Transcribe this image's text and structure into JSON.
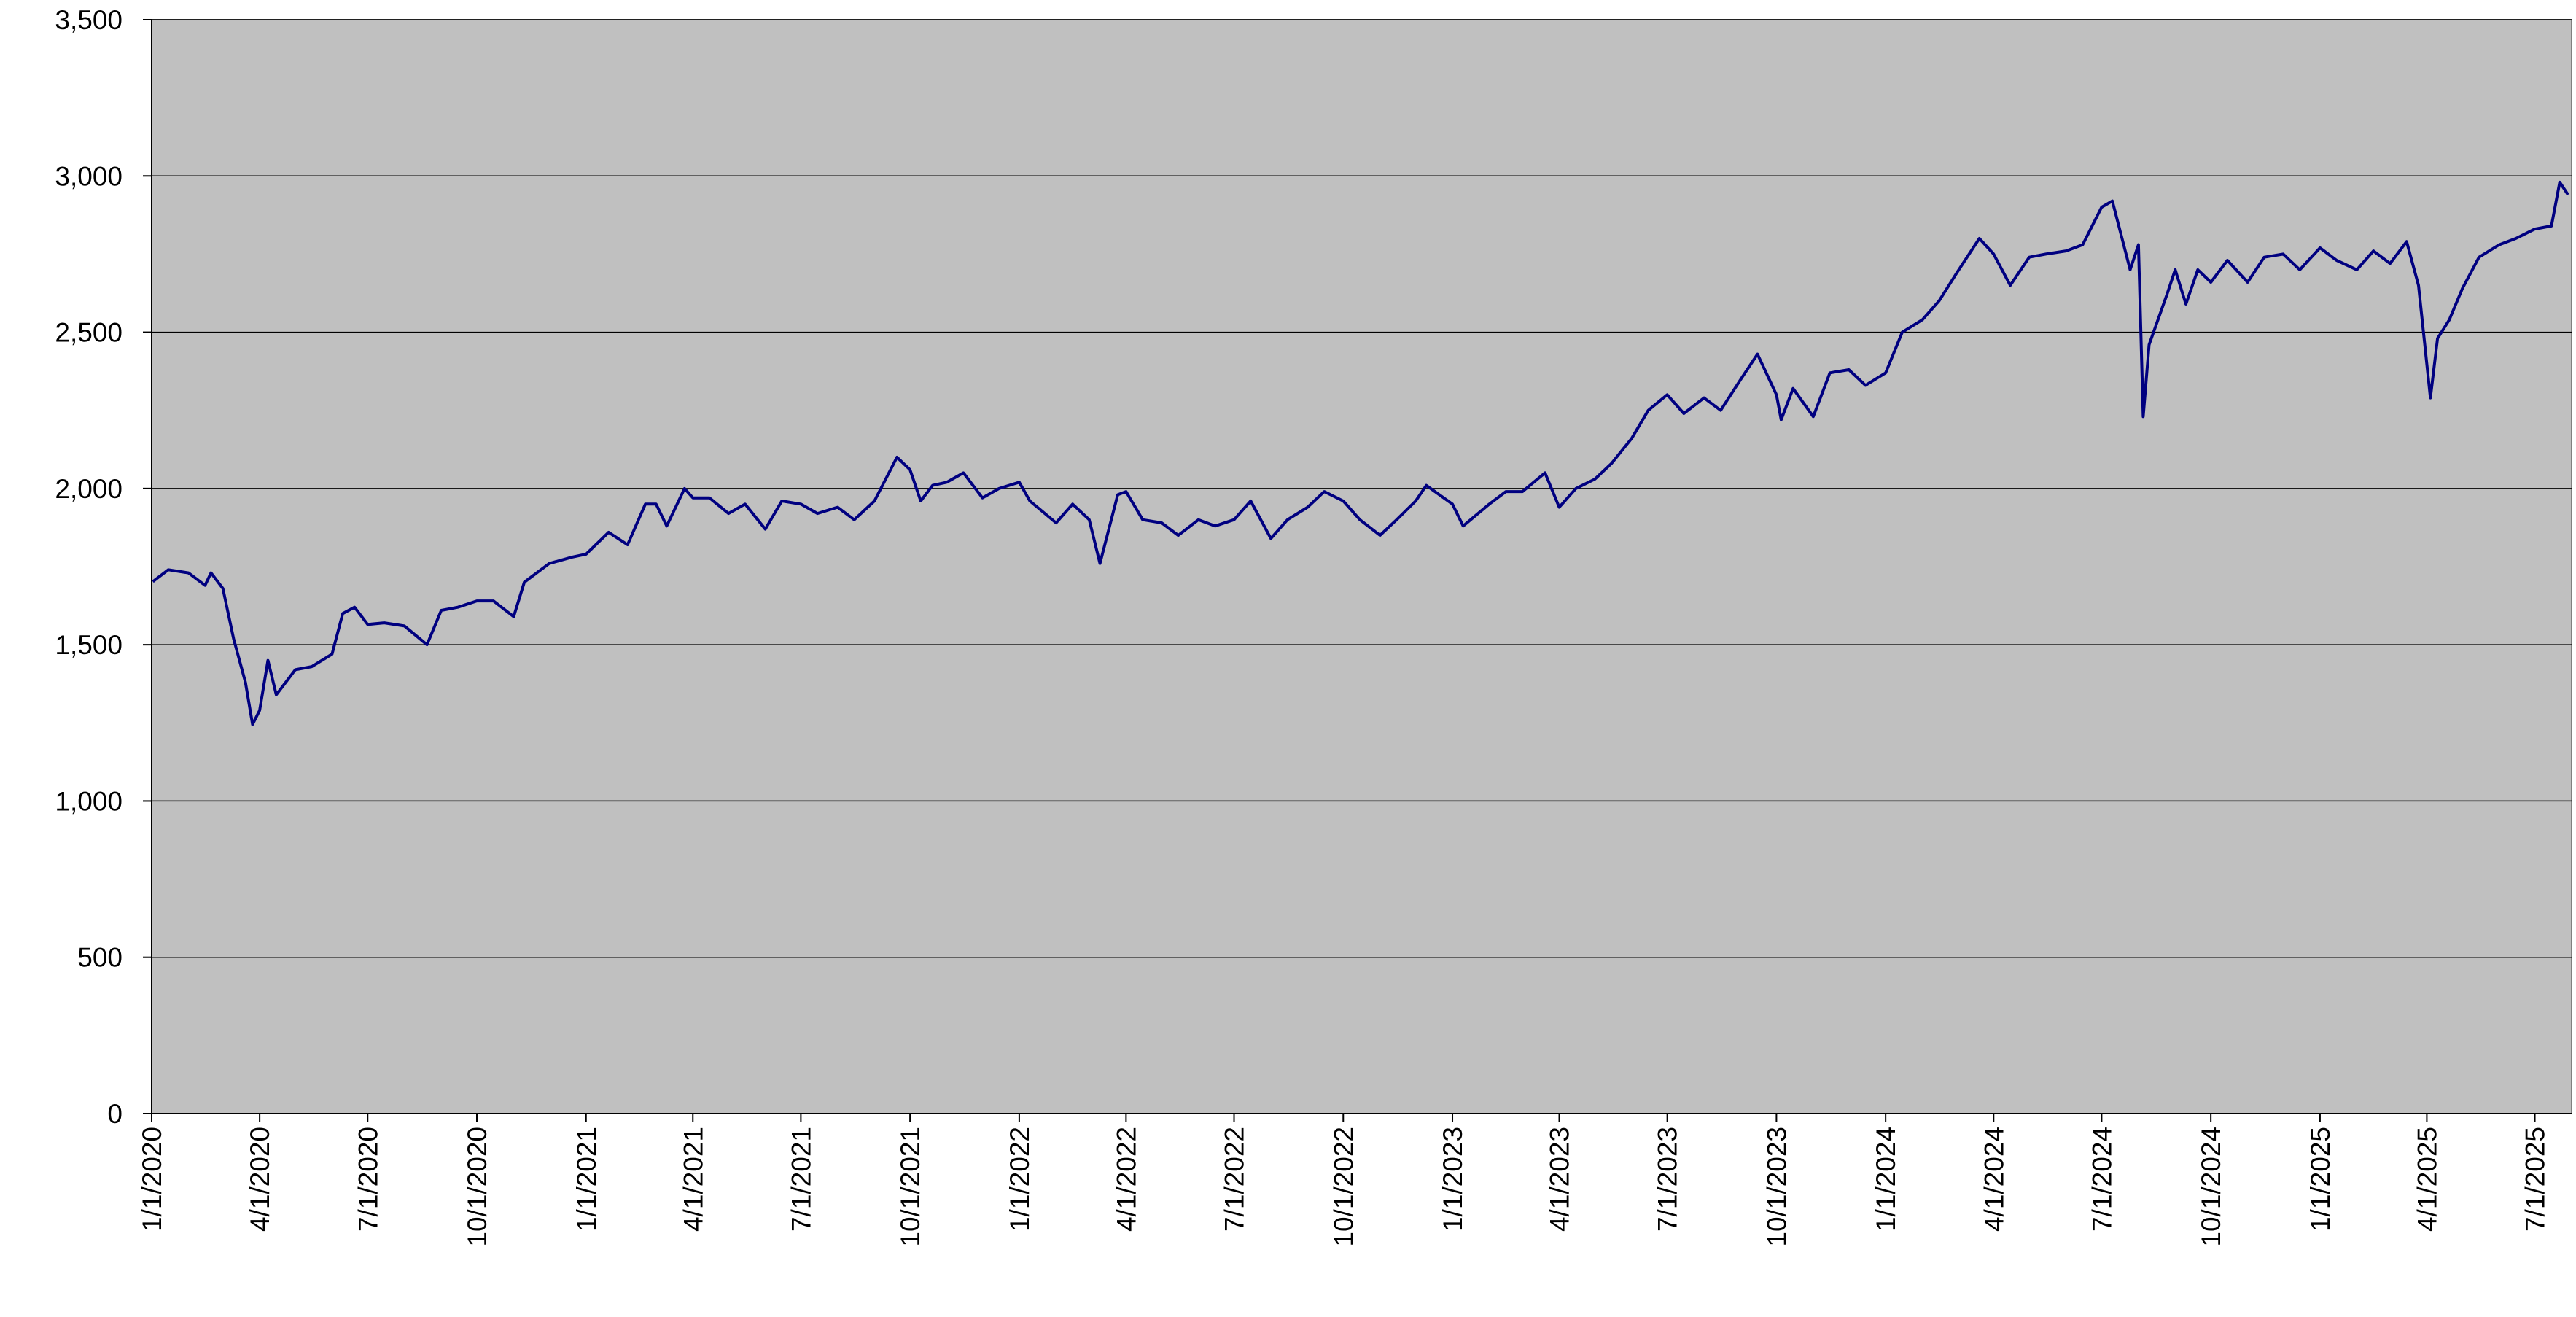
{
  "chart_data": {
    "type": "line",
    "x": [
      "1/2/2020",
      "1/15/2020",
      "2/1/2020",
      "2/15/2020",
      "2/20/2020",
      "3/1/2020",
      "3/10/2020",
      "3/20/2020",
      "3/26/2020",
      "4/1/2020",
      "4/8/2020",
      "4/15/2020",
      "5/1/2020",
      "5/15/2020",
      "6/1/2020",
      "6/10/2020",
      "6/20/2020",
      "7/1/2020",
      "7/15/2020",
      "8/1/2020",
      "8/20/2020",
      "9/1/2020",
      "9/15/2020",
      "10/1/2020",
      "10/15/2020",
      "11/1/2020",
      "11/10/2020",
      "12/1/2020",
      "12/20/2020",
      "1/1/2021",
      "1/20/2021",
      "2/5/2021",
      "2/20/2021",
      "3/1/2021",
      "3/10/2021",
      "3/25/2021",
      "4/1/2021",
      "4/15/2021",
      "5/1/2021",
      "5/15/2021",
      "6/1/2021",
      "6/15/2021",
      "7/1/2021",
      "7/15/2021",
      "8/1/2021",
      "8/15/2021",
      "9/1/2021",
      "9/20/2021",
      "10/1/2021",
      "10/10/2021",
      "10/20/2021",
      "11/1/2021",
      "11/15/2021",
      "12/1/2021",
      "12/15/2021",
      "1/1/2022",
      "1/10/2022",
      "2/1/2022",
      "2/15/2022",
      "3/1/2022",
      "3/10/2022",
      "3/25/2022",
      "4/1/2022",
      "4/15/2022",
      "5/1/2022",
      "5/15/2022",
      "6/1/2022",
      "6/15/2022",
      "7/1/2022",
      "7/15/2022",
      "8/1/2022",
      "8/15/2022",
      "9/1/2022",
      "9/15/2022",
      "10/1/2022",
      "10/15/2022",
      "11/1/2022",
      "11/15/2022",
      "12/1/2022",
      "12/10/2022",
      "1/1/2023",
      "1/10/2023",
      "2/1/2023",
      "2/15/2023",
      "3/1/2023",
      "3/20/2023",
      "4/1/2023",
      "4/15/2023",
      "5/1/2023",
      "5/15/2023",
      "6/1/2023",
      "6/15/2023",
      "7/1/2023",
      "7/15/2023",
      "8/1/2023",
      "8/15/2023",
      "9/1/2023",
      "9/15/2023",
      "10/1/2023",
      "10/5/2023",
      "10/15/2023",
      "11/1/2023",
      "11/15/2023",
      "12/1/2023",
      "12/15/2023",
      "1/1/2024",
      "1/15/2024",
      "2/1/2024",
      "2/15/2024",
      "3/1/2024",
      "3/20/2024",
      "4/1/2024",
      "4/15/2024",
      "5/1/2024",
      "5/15/2024",
      "6/1/2024",
      "6/15/2024",
      "7/1/2024",
      "7/10/2024",
      "7/25/2024",
      "8/1/2024",
      "8/5/2024",
      "8/10/2024",
      "8/25/2024",
      "9/1/2024",
      "9/10/2024",
      "9/20/2024",
      "10/1/2024",
      "10/15/2024",
      "11/1/2024",
      "11/15/2024",
      "12/1/2024",
      "12/15/2024",
      "1/1/2025",
      "1/15/2025",
      "2/1/2025",
      "2/15/2025",
      "3/1/2025",
      "3/15/2025",
      "3/25/2025",
      "4/4/2025",
      "4/10/2025",
      "4/20/2025",
      "5/1/2025",
      "5/15/2025",
      "6/1/2025",
      "6/15/2025",
      "7/1/2025",
      "7/15/2025",
      "7/22/2025",
      "7/29/2025"
    ],
    "values": [
      1702,
      1740,
      1730,
      1690,
      1730,
      1680,
      1520,
      1380,
      1245,
      1290,
      1450,
      1340,
      1420,
      1430,
      1470,
      1600,
      1620,
      1565,
      1570,
      1560,
      1500,
      1610,
      1620,
      1640,
      1640,
      1590,
      1700,
      1760,
      1780,
      1790,
      1860,
      1820,
      1950,
      1950,
      1880,
      2000,
      1970,
      1970,
      1920,
      1950,
      1870,
      1960,
      1950,
      1920,
      1940,
      1900,
      1960,
      2100,
      2060,
      1960,
      2010,
      2020,
      2050,
      1970,
      2000,
      2020,
      1960,
      1890,
      1950,
      1900,
      1760,
      1980,
      1990,
      1900,
      1890,
      1850,
      1900,
      1880,
      1900,
      1960,
      1840,
      1900,
      1940,
      1990,
      1960,
      1900,
      1850,
      1900,
      1960,
      2010,
      1950,
      1880,
      1950,
      1990,
      1990,
      2050,
      1940,
      2000,
      2030,
      2080,
      2160,
      2250,
      2300,
      2240,
      2290,
      2250,
      2350,
      2430,
      2300,
      2220,
      2320,
      2230,
      2370,
      2380,
      2330,
      2370,
      2500,
      2540,
      2600,
      2690,
      2800,
      2750,
      2650,
      2740,
      2750,
      2760,
      2780,
      2900,
      2920,
      2700,
      2780,
      2230,
      2460,
      2620,
      2700,
      2590,
      2700,
      2660,
      2730,
      2660,
      2740,
      2750,
      2700,
      2770,
      2730,
      2700,
      2760,
      2720,
      2790,
      2650,
      2290,
      2480,
      2540,
      2640,
      2740,
      2780,
      2800,
      2830,
      2840,
      2980,
      2940
    ],
    "color": "#000080",
    "xlim": [
      "1/1/2020",
      "8/1/2025"
    ],
    "xticks": [
      "1/1/2020",
      "4/1/2020",
      "7/1/2020",
      "10/1/2020",
      "1/1/2021",
      "4/1/2021",
      "7/1/2021",
      "10/1/2021",
      "1/1/2022",
      "4/1/2022",
      "7/1/2022",
      "10/1/2022",
      "1/1/2023",
      "4/1/2023",
      "7/1/2023",
      "10/1/2023",
      "1/1/2024",
      "4/1/2024",
      "7/1/2024",
      "10/1/2024",
      "1/1/2025",
      "4/1/2025",
      "7/1/2025"
    ],
    "ylim": [
      0,
      3500
    ],
    "yticks": [
      0,
      500,
      {
        "value": 1000,
        "label": "1,000"
      },
      {
        "value": 1500,
        "label": "1,500"
      },
      {
        "value": 2000,
        "label": "2,000"
      },
      {
        "value": 2500,
        "label": "2,500"
      },
      {
        "value": 3000,
        "label": "3,000"
      },
      {
        "value": 3500,
        "label": "3,500"
      }
    ],
    "grid": true
  }
}
